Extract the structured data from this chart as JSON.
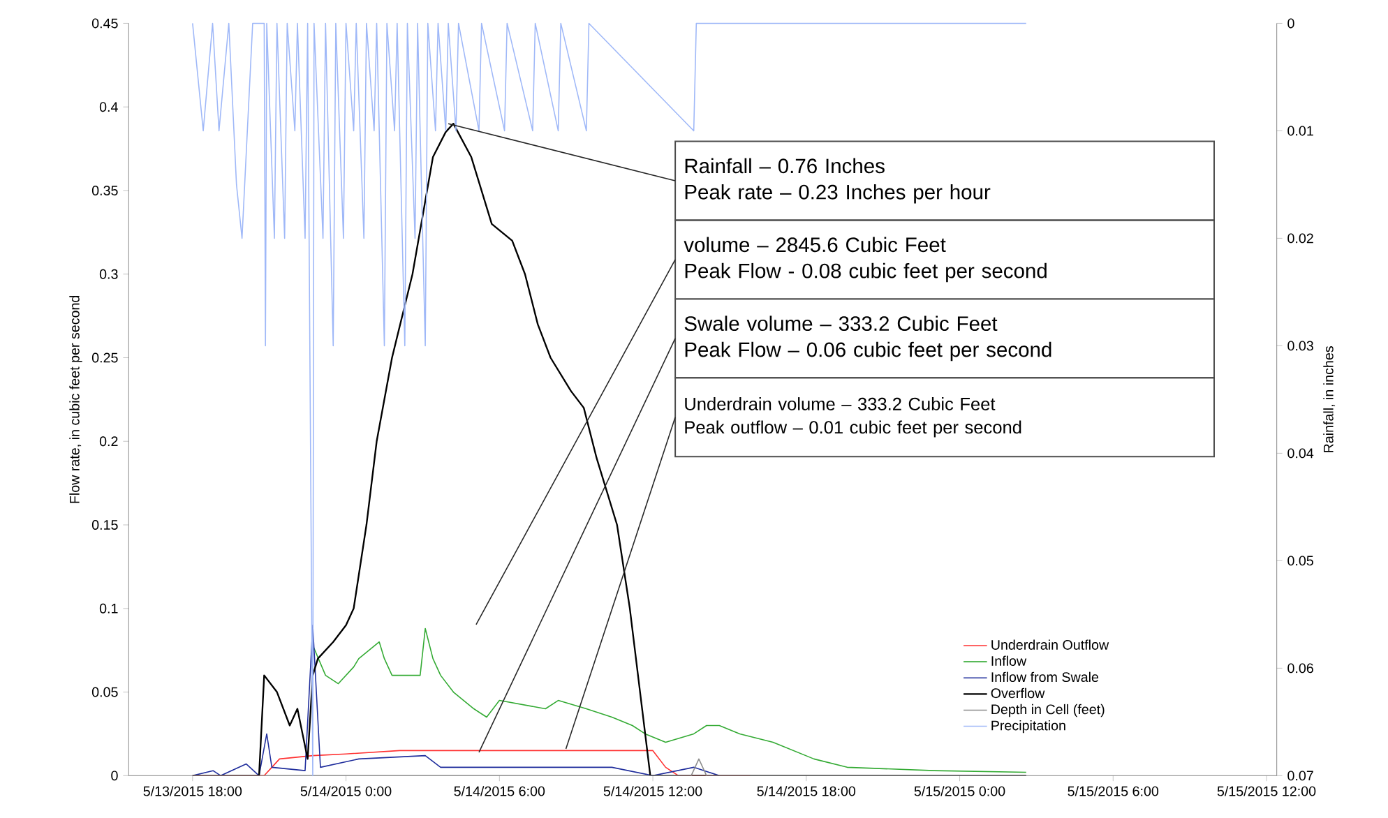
{
  "chart_data": {
    "type": "line",
    "ylabel": "Flow rate, in cubic feet per second",
    "y2label": "Rainfall, in inches",
    "xlim": [
      "2015-05-13T15:30",
      "2015-05-15T12:24"
    ],
    "xticks": [
      {
        "value": "2015-05-13T18:00",
        "label": "5/13/2015 18:00"
      },
      {
        "value": "2015-05-14T00:00",
        "label": "5/14/2015 0:00"
      },
      {
        "value": "2015-05-14T06:00",
        "label": "5/14/2015 6:00"
      },
      {
        "value": "2015-05-14T12:00",
        "label": "5/14/2015 12:00"
      },
      {
        "value": "2015-05-14T18:00",
        "label": "5/14/2015 18:00"
      },
      {
        "value": "2015-05-15T00:00",
        "label": "5/15/2015 0:00"
      },
      {
        "value": "2015-05-15T06:00",
        "label": "5/15/2015 6:00"
      },
      {
        "value": "2015-05-15T12:00",
        "label": "5/15/2015 12:00"
      }
    ],
    "ylim": [
      0,
      0.45
    ],
    "yticks": [
      0,
      0.05,
      0.1,
      0.15,
      0.2,
      0.25,
      0.3,
      0.35,
      0.4,
      0.45
    ],
    "y2lim": [
      0.07,
      0
    ],
    "y2ticks": [
      0,
      0.01,
      0.02,
      0.03,
      0.04,
      0.05,
      0.06,
      0.07
    ],
    "legend": "bottom right",
    "series": [
      {
        "name": "Underdrain Outflow",
        "color": "#ff3030",
        "x": [
          "2015-05-13T18:00",
          "2015-05-13T20:48",
          "2015-05-13T21:06",
          "2015-05-13T21:24",
          "2015-05-13T22:42",
          "2015-05-14T00:00",
          "2015-05-14T02:06",
          "2015-05-14T12:00",
          "2015-05-14T12:30",
          "2015-05-14T13:00",
          "2015-05-14T15:48"
        ],
        "values": [
          0,
          0,
          0.005,
          0.01,
          0.012,
          0.013,
          0.015,
          0.015,
          0.005,
          0,
          0
        ]
      },
      {
        "name": "Inflow",
        "color": "#33aa33",
        "x": [
          "2015-05-13T22:42",
          "2015-05-13T23:12",
          "2015-05-13T23:42",
          "2015-05-14T00:18",
          "2015-05-14T00:30",
          "2015-05-14T01:18",
          "2015-05-14T01:30",
          "2015-05-14T01:48",
          "2015-05-14T02:54",
          "2015-05-14T03:06",
          "2015-05-14T03:24",
          "2015-05-14T03:42",
          "2015-05-14T04:12",
          "2015-05-14T05:00",
          "2015-05-14T05:30",
          "2015-05-14T06:00",
          "2015-05-14T07:48",
          "2015-05-14T08:18",
          "2015-05-14T09:24",
          "2015-05-14T10:24",
          "2015-05-14T11:12",
          "2015-05-14T11:42",
          "2015-05-14T12:30",
          "2015-05-14T13:36",
          "2015-05-14T14:06",
          "2015-05-14T14:36",
          "2015-05-14T15:24",
          "2015-05-14T16:42",
          "2015-05-14T17:30",
          "2015-05-14T18:18",
          "2015-05-14T19:36",
          "2015-05-14T23:00",
          "2015-05-15T02:36"
        ],
        "values": [
          0.078,
          0.06,
          0.055,
          0.065,
          0.07,
          0.08,
          0.07,
          0.06,
          0.06,
          0.088,
          0.07,
          0.06,
          0.05,
          0.04,
          0.035,
          0.045,
          0.04,
          0.045,
          0.04,
          0.035,
          0.03,
          0.025,
          0.02,
          0.025,
          0.03,
          0.03,
          0.025,
          0.02,
          0.015,
          0.01,
          0.005,
          0.003,
          0.002
        ]
      },
      {
        "name": "Inflow from Swale",
        "color": "#1f2d9c",
        "x": [
          "2015-05-13T18:00",
          "2015-05-13T18:48",
          "2015-05-13T19:06",
          "2015-05-13T20:06",
          "2015-05-13T20:36",
          "2015-05-13T20:54",
          "2015-05-13T21:06",
          "2015-05-13T22:24",
          "2015-05-13T22:42",
          "2015-05-13T23:00",
          "2015-05-14T00:30",
          "2015-05-14T03:06",
          "2015-05-14T03:42",
          "2015-05-14T10:24",
          "2015-05-14T12:00",
          "2015-05-14T13:36",
          "2015-05-14T14:36"
        ],
        "values": [
          0,
          0.003,
          0,
          0.007,
          0,
          0.025,
          0.005,
          0.003,
          0.09,
          0.005,
          0.01,
          0.012,
          0.005,
          0.005,
          0,
          0.005,
          0
        ]
      },
      {
        "name": "Overflow",
        "color": "#000000",
        "x": [
          "2015-05-13T18:00",
          "2015-05-13T20:36",
          "2015-05-13T20:48",
          "2015-05-13T21:18",
          "2015-05-13T21:48",
          "2015-05-13T22:06",
          "2015-05-13T22:30",
          "2015-05-13T22:42",
          "2015-05-13T22:54",
          "2015-05-13T23:30",
          "2015-05-14T00:00",
          "2015-05-14T00:18",
          "2015-05-14T00:48",
          "2015-05-14T01:12",
          "2015-05-14T01:48",
          "2015-05-14T02:36",
          "2015-05-14T03:24",
          "2015-05-14T03:54",
          "2015-05-14T04:12",
          "2015-05-14T04:54",
          "2015-05-14T05:42",
          "2015-05-14T06:30",
          "2015-05-14T07:00",
          "2015-05-14T07:30",
          "2015-05-14T08:00",
          "2015-05-14T08:48",
          "2015-05-14T09:18",
          "2015-05-14T09:48",
          "2015-05-14T10:36",
          "2015-05-14T11:06",
          "2015-05-14T11:30",
          "2015-05-14T11:54",
          "2015-05-15T02:36"
        ],
        "values": [
          0,
          0,
          0.06,
          0.05,
          0.03,
          0.04,
          0.01,
          0.06,
          0.07,
          0.08,
          0.09,
          0.1,
          0.15,
          0.2,
          0.25,
          0.3,
          0.37,
          0.385,
          0.39,
          0.37,
          0.33,
          0.32,
          0.3,
          0.27,
          0.25,
          0.23,
          0.22,
          0.19,
          0.15,
          0.1,
          0.05,
          0,
          0
        ]
      },
      {
        "name": "Depth in Cell (feet)",
        "color": "#8c8c8c",
        "x": [
          "2015-05-13T18:00",
          "2015-05-14T13:30",
          "2015-05-14T13:48",
          "2015-05-14T14:06",
          "2015-05-15T02:36"
        ],
        "values": [
          0,
          0,
          0.01,
          0,
          0
        ]
      },
      {
        "name": "Precipitation",
        "color": "#9fb8f8",
        "axis": "y2",
        "x": [
          "2015-05-13T18:00",
          "2015-05-13T18:25",
          "2015-05-13T18:47",
          "2015-05-13T19:02",
          "2015-05-13T19:25",
          "2015-05-13T19:43",
          "2015-05-13T19:56",
          "2015-05-13T20:21",
          "2015-05-13T20:48",
          "2015-05-13T20:51",
          "2015-05-13T20:54",
          "2015-05-13T21:12",
          "2015-05-13T21:18",
          "2015-05-13T21:36",
          "2015-05-13T21:42",
          "2015-05-13T22:00",
          "2015-05-13T22:06",
          "2015-05-13T22:24",
          "2015-05-13T22:30",
          "2015-05-13T22:42",
          "2015-05-13T22:45",
          "2015-05-13T23:06",
          "2015-05-13T23:12",
          "2015-05-13T23:30",
          "2015-05-13T23:36",
          "2015-05-13T23:54",
          "2015-05-14T00:00",
          "2015-05-14T00:18",
          "2015-05-14T00:24",
          "2015-05-14T00:42",
          "2015-05-14T00:48",
          "2015-05-14T01:06",
          "2015-05-14T01:12",
          "2015-05-14T01:30",
          "2015-05-14T01:36",
          "2015-05-14T01:54",
          "2015-05-14T02:00",
          "2015-05-14T02:18",
          "2015-05-14T02:24",
          "2015-05-14T02:42",
          "2015-05-14T02:48",
          "2015-05-14T03:06",
          "2015-05-14T03:12",
          "2015-05-14T03:30",
          "2015-05-14T03:36",
          "2015-05-14T03:54",
          "2015-05-14T04:00",
          "2015-05-14T04:18",
          "2015-05-14T04:24",
          "2015-05-14T05:12",
          "2015-05-14T05:18",
          "2015-05-14T06:12",
          "2015-05-14T06:18",
          "2015-05-14T07:18",
          "2015-05-14T07:24",
          "2015-05-14T08:18",
          "2015-05-14T08:24",
          "2015-05-14T09:24",
          "2015-05-14T09:30",
          "2015-05-14T13:36",
          "2015-05-14T13:42",
          "2015-05-15T02:36"
        ],
        "values": [
          0,
          0.01,
          0,
          0.01,
          0,
          0.015,
          0.02,
          0,
          0,
          0.03,
          0,
          0.02,
          0,
          0.02,
          0,
          0.01,
          0,
          0.02,
          0,
          0.07,
          0,
          0.02,
          0,
          0.03,
          0,
          0.02,
          0,
          0.01,
          0,
          0.02,
          0,
          0.01,
          0,
          0.03,
          0,
          0.01,
          0,
          0.03,
          0,
          0.02,
          0,
          0.03,
          0,
          0.01,
          0,
          0.01,
          0,
          0.01,
          0,
          0.01,
          0,
          0.01,
          0,
          0.01,
          0,
          0.01,
          0,
          0.01,
          0,
          0.01,
          0,
          0
        ]
      }
    ],
    "annotations": [
      {
        "text": "Rainfall – 0.76 Inches",
        "x": "2015-05-14T04:00",
        "y": 0.39
      },
      "Peak rate – 0.23 Inches per hour",
      "volume – 2845.6 Cubic Feet",
      "Peak Flow - 0.08 cubic feet per second",
      {
        "text": "Swale volume – 333.2 Cubic Feet",
        "x": "2015-05-14T05:12",
        "y": 0.014
      },
      "Peak Flow – 0.06 cubic feet per second",
      {
        "text": "Underdrain volume – 333.2 Cubic Feet",
        "x": "2015-05-14T08:36",
        "y": 0.016
      },
      "Peak outflow – 0.01 cubic feet per second"
    ]
  }
}
